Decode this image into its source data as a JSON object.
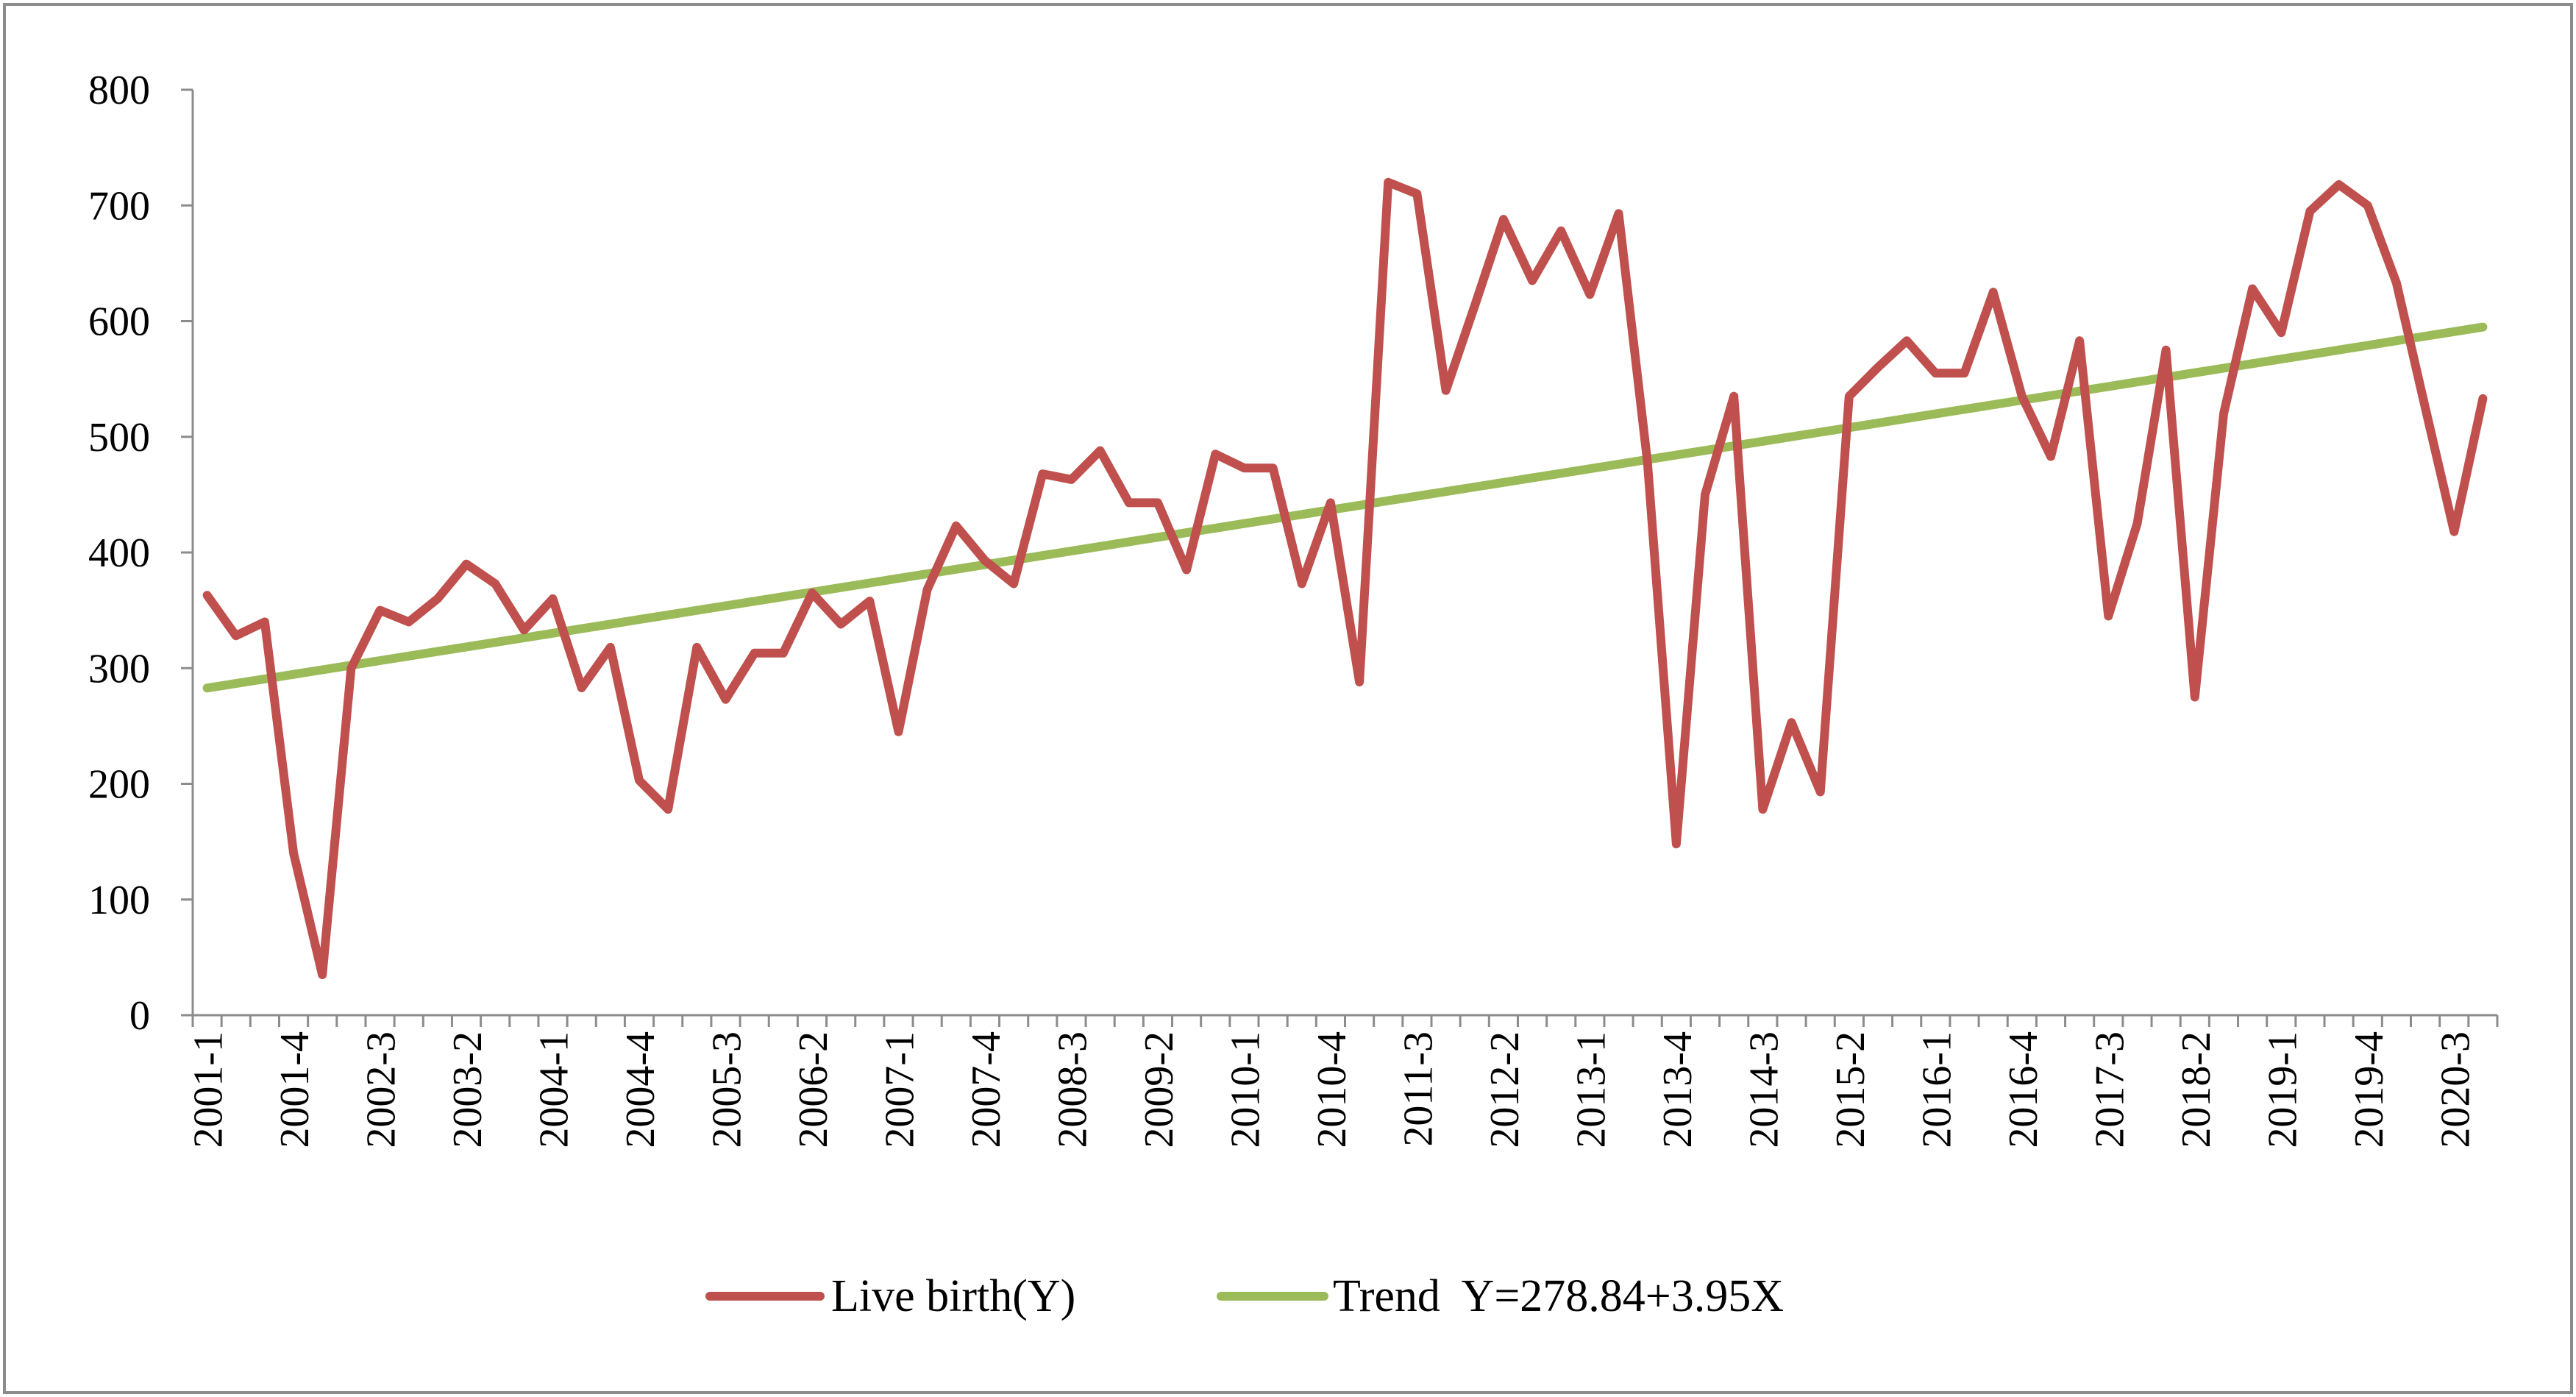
{
  "chart_data": {
    "type": "line",
    "title": "",
    "xlabel": "",
    "ylabel": "",
    "ylim": [
      0,
      800
    ],
    "yticks": [
      0,
      100,
      200,
      300,
      400,
      500,
      600,
      700,
      800
    ],
    "x": [
      "2001-1",
      "2001-2",
      "2001-3",
      "2001-4",
      "2002-1",
      "2002-2",
      "2002-3",
      "2002-4",
      "2003-1",
      "2003-2",
      "2003-3",
      "2003-4",
      "2004-1",
      "2004-2",
      "2004-3",
      "2004-4",
      "2005-1",
      "2005-2",
      "2005-3",
      "2005-4",
      "2006-1",
      "2006-2",
      "2006-3",
      "2006-4",
      "2007-1",
      "2007-2",
      "2007-3",
      "2007-4",
      "2008-1",
      "2008-2",
      "2008-3",
      "2008-4",
      "2009-1",
      "2009-2",
      "2009-3",
      "2009-4",
      "2010-1",
      "2010-2",
      "2010-3",
      "2010-4",
      "2011-1",
      "2011-2",
      "2011-3",
      "2011-4",
      "2012-1",
      "2012-2",
      "2012-3",
      "2012-4",
      "2013-1",
      "2013-2",
      "2013-3",
      "2013-4",
      "2014-1",
      "2014-2",
      "2014-3",
      "2014-4",
      "2015-1",
      "2015-2",
      "2015-3",
      "2015-4",
      "2016-1",
      "2016-2",
      "2016-3",
      "2016-4",
      "2017-1",
      "2017-2",
      "2017-3",
      "2017-4",
      "2018-1",
      "2018-2",
      "2018-3",
      "2018-4",
      "2019-1",
      "2019-2",
      "2019-3",
      "2019-4",
      "2020-1",
      "2020-2",
      "2020-3",
      "2020-4"
    ],
    "tick_labels": [
      "2001-1",
      "2001-4",
      "2002-3",
      "2003-2",
      "2004-1",
      "2004-4",
      "2005-3",
      "2006-2",
      "2007-1",
      "2007-4",
      "2008-3",
      "2009-2",
      "2010-1",
      "2010-4",
      "2011-3",
      "2012-2",
      "2013-1",
      "2013-4",
      "2014-3",
      "2015-2",
      "2016-1",
      "2016-4",
      "2017-3",
      "2018-2",
      "2019-1",
      "2019-4",
      "2020-3"
    ],
    "series": [
      {
        "name": "Live birth(Y)",
        "color": "#C0504D",
        "values": [
          363,
          328,
          340,
          140,
          35,
          300,
          350,
          340,
          360,
          390,
          373,
          333,
          360,
          283,
          318,
          203,
          178,
          318,
          273,
          313,
          313,
          365,
          338,
          358,
          245,
          368,
          423,
          393,
          373,
          468,
          463,
          488,
          443,
          443,
          385,
          485,
          473,
          473,
          373,
          443,
          288,
          720,
          710,
          540,
          613,
          688,
          635,
          678,
          623,
          693,
          478,
          148,
          450,
          535,
          178,
          253,
          193,
          535,
          560,
          583,
          555,
          555,
          625,
          535,
          483,
          583,
          345,
          425,
          575,
          275,
          520,
          628,
          590,
          695,
          718,
          700,
          633,
          525,
          418,
          533
        ]
      },
      {
        "name": "Trend  Y=278.84+3.95X",
        "color": "#9BBB59",
        "intercept": 278.84,
        "slope": 3.95
      }
    ],
    "legend": "bottom"
  }
}
